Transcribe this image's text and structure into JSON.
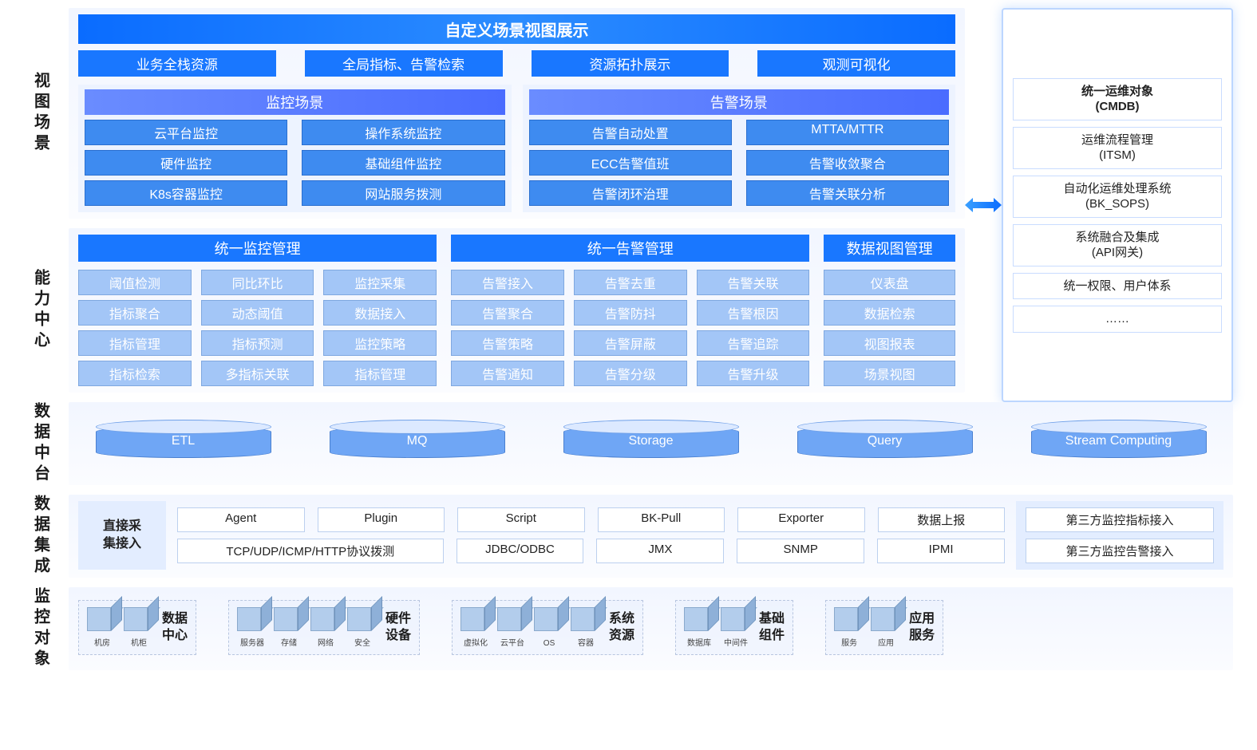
{
  "colors": {
    "primary_blue": "#1977ff",
    "gradient_blue_a": "#0a6cff",
    "gradient_purple_a": "#6a8cff",
    "gradient_purple_b": "#4a6cff",
    "cell_blue": "#3e8bf0",
    "cap_cell": "#a3c6f7",
    "cylinder": "#6fa6f5",
    "panel_bg": "#f2f6ff",
    "border_light": "#bcd0ef"
  },
  "section_labels": {
    "view_scene": "视图场景",
    "capability": "能力中心",
    "data_platform": "数据中台",
    "data_integration": "数据集成",
    "monitor_objects": "监控对象"
  },
  "top": {
    "title": "自定义场景视图展示",
    "tabs": [
      "业务全栈资源",
      "全局指标、告警检索",
      "资源拓扑展示",
      "观测可视化"
    ],
    "scene_groups": [
      {
        "header": "监控场景",
        "cells": [
          "云平台监控",
          "操作系统监控",
          "硬件监控",
          "基础组件监控",
          "K8s容器监控",
          "网站服务拨测"
        ]
      },
      {
        "header": "告警场景",
        "cells": [
          "告警自动处置",
          "MTTA/MTTR",
          "ECC告警值班",
          "告警收敛聚合",
          "告警闭环治理",
          "告警关联分析"
        ]
      }
    ]
  },
  "side_panel": [
    "统一运维对象\n(CMDB)",
    "运维流程管理\n(ITSM)",
    "自动化运维处理系统\n(BK_SOPS)",
    "系统融合及集成\n(API网关)",
    "统一权限、用户体系",
    "……"
  ],
  "capability": {
    "blocks": [
      {
        "title": "统一监控管理",
        "cols": 3,
        "cells": [
          "阈值检测",
          "同比环比",
          "监控采集",
          "指标聚合",
          "动态阈值",
          "数据接入",
          "指标管理",
          "指标预测",
          "监控策略",
          "指标检索",
          "多指标关联",
          "指标管理"
        ]
      },
      {
        "title": "统一告警管理",
        "cols": 3,
        "cells": [
          "告警接入",
          "告警去重",
          "告警关联",
          "告警聚合",
          "告警防抖",
          "告警根因",
          "告警策略",
          "告警屏蔽",
          "告警追踪",
          "告警通知",
          "告警分级",
          "告警升级"
        ]
      },
      {
        "title": "数据视图管理",
        "cols": 1,
        "cells": [
          "仪表盘",
          "数据检索",
          "视图报表",
          "场景视图"
        ]
      }
    ]
  },
  "data_platform": [
    "ETL",
    "MQ",
    "Storage",
    "Query",
    "Stream Computing"
  ],
  "data_integration": {
    "left_label": "直接采\n集接入",
    "row1": [
      {
        "label": "Agent",
        "flex": 1
      },
      {
        "label": "Plugin",
        "flex": 1
      },
      {
        "label": "Script",
        "flex": 1
      },
      {
        "label": "BK-Pull",
        "flex": 1
      },
      {
        "label": "Exporter",
        "flex": 1
      },
      {
        "label": "数据上报",
        "flex": 1
      }
    ],
    "row2": [
      {
        "label": "TCP/UDP/ICMP/HTTP协议拨测",
        "flex": 2.1
      },
      {
        "label": "JDBC/ODBC",
        "flex": 1
      },
      {
        "label": "JMX",
        "flex": 1
      },
      {
        "label": "SNMP",
        "flex": 1
      },
      {
        "label": "IPMI",
        "flex": 1
      }
    ],
    "right": [
      "第三方监控指标接入",
      "第三方监控告警接入"
    ]
  },
  "monitor_objects": [
    {
      "title": "数据\n中心",
      "cubes": [
        "机房",
        "机柜"
      ]
    },
    {
      "title": "硬件\n设备",
      "cubes": [
        "服务器",
        "存储",
        "网络",
        "安全"
      ]
    },
    {
      "title": "系统\n资源",
      "cubes": [
        "虚拟化",
        "云平台",
        "OS",
        "容器"
      ]
    },
    {
      "title": "基础\n组件",
      "cubes": [
        "数据库",
        "中间件"
      ]
    },
    {
      "title": "应用\n服务",
      "cubes": [
        "服务",
        "应用"
      ]
    }
  ]
}
